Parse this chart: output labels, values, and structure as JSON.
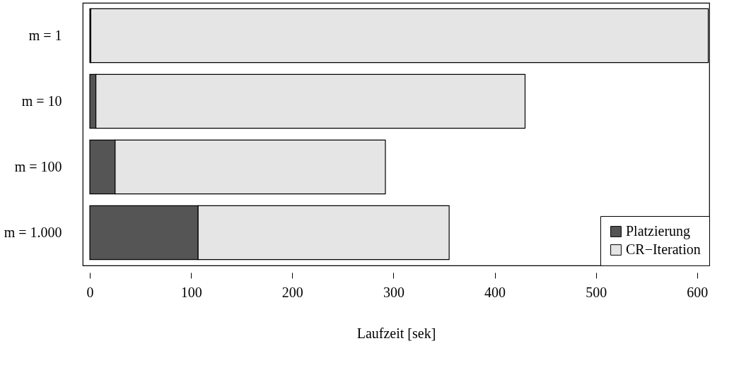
{
  "chart_data": {
    "type": "bar",
    "orientation": "horizontal",
    "stacked": true,
    "xlabel": "Laufzeit [sek]",
    "categories": [
      "m = 1",
      "m = 10",
      "m = 100",
      "m = 1.000"
    ],
    "series": [
      {
        "name": "Platzierung",
        "color": "#555555",
        "values": [
          1,
          6,
          25,
          107
        ]
      },
      {
        "name": "CR−Iteration",
        "color": "#e5e5e5",
        "values": [
          610,
          424,
          267,
          248
        ]
      }
    ],
    "xlim": [
      -7,
      612
    ],
    "xticks": [
      0,
      100,
      200,
      300,
      400,
      500,
      600
    ],
    "grid": false,
    "legend": "bottom right"
  }
}
